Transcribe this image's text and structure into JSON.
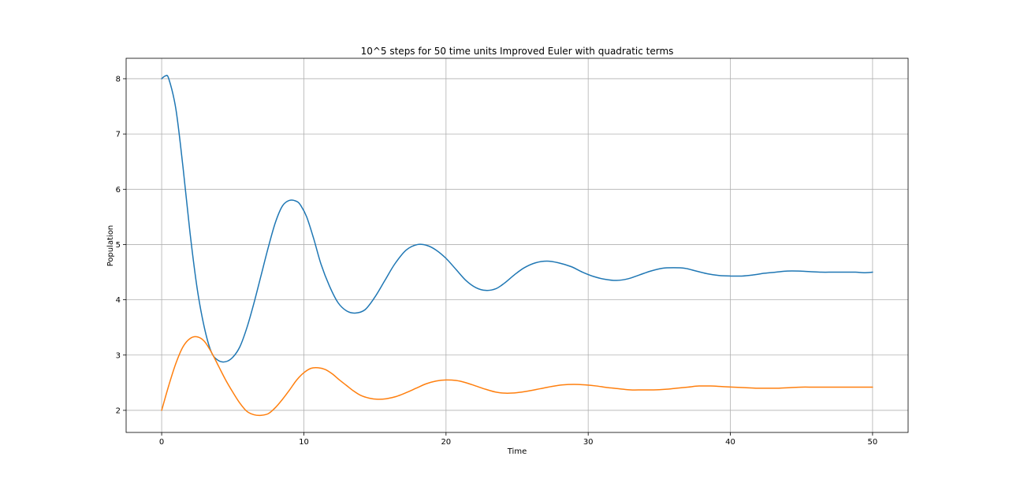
{
  "chart_data": {
    "type": "line",
    "title": "10^5 steps for 50 time units Improved Euler with quadratic terms",
    "xlabel": "Time",
    "ylabel": "Population",
    "xlim": [
      -2.5,
      52.5
    ],
    "ylim": [
      1.6,
      8.37
    ],
    "xticks": [
      0,
      10,
      20,
      30,
      40,
      50
    ],
    "yticks": [
      2,
      3,
      4,
      5,
      6,
      7,
      8
    ],
    "grid": true,
    "legend": "none",
    "series": [
      {
        "color": "#1f77b4",
        "x": [
          0,
          0.25,
          0.5,
          1.0,
          1.5,
          2.0,
          2.5,
          3.0,
          3.5,
          4.0,
          4.5,
          5.0,
          5.5,
          6.0,
          6.5,
          7.0,
          7.5,
          8.0,
          8.5,
          9.0,
          9.5,
          9.8,
          10.2,
          10.7,
          11.2,
          11.8,
          12.4,
          13.0,
          13.6,
          14.3,
          15.0,
          15.7,
          16.4,
          17.2,
          18.0,
          18.7,
          19.3,
          20.0,
          20.7,
          21.4,
          22.1,
          22.8,
          23.5,
          24.1,
          24.8,
          25.5,
          26.3,
          27.1,
          27.9,
          28.8,
          29.6,
          30.4,
          31.2,
          32.0,
          32.8,
          33.6,
          34.4,
          35.2,
          36.0,
          36.8,
          37.6,
          38.4,
          39.2,
          40.0,
          40.8,
          41.6,
          42.4,
          43.2,
          44.0,
          44.8,
          45.6,
          46.4,
          47.2,
          48.0,
          48.8,
          49.4,
          50.0
        ],
        "y": [
          8.0,
          8.05,
          8.0,
          7.45,
          6.4,
          5.2,
          4.2,
          3.5,
          3.05,
          2.9,
          2.88,
          2.96,
          3.15,
          3.5,
          3.95,
          4.45,
          4.95,
          5.4,
          5.7,
          5.8,
          5.78,
          5.7,
          5.5,
          5.1,
          4.65,
          4.25,
          3.95,
          3.8,
          3.76,
          3.82,
          4.05,
          4.35,
          4.65,
          4.9,
          5.0,
          4.98,
          4.9,
          4.75,
          4.55,
          4.35,
          4.22,
          4.17,
          4.2,
          4.3,
          4.45,
          4.58,
          4.67,
          4.7,
          4.67,
          4.6,
          4.5,
          4.42,
          4.37,
          4.35,
          4.38,
          4.45,
          4.52,
          4.57,
          4.58,
          4.57,
          4.52,
          4.47,
          4.44,
          4.43,
          4.43,
          4.45,
          4.48,
          4.5,
          4.52,
          4.52,
          4.51,
          4.5,
          4.5,
          4.5,
          4.5,
          4.49,
          4.5
        ]
      },
      {
        "color": "#ff7f0e",
        "x": [
          0,
          0.5,
          1.0,
          1.5,
          2.0,
          2.5,
          3.0,
          3.5,
          4.0,
          4.5,
          5.0,
          5.5,
          6.0,
          6.5,
          7.0,
          7.5,
          8.0,
          8.5,
          9.0,
          9.5,
          10.0,
          10.5,
          11.0,
          11.5,
          12.0,
          12.5,
          13.0,
          13.5,
          14.0,
          14.6,
          15.2,
          15.8,
          16.5,
          17.2,
          17.9,
          18.6,
          19.3,
          20.0,
          20.7,
          21.4,
          22.1,
          22.8,
          23.5,
          24.2,
          25.0,
          25.8,
          26.6,
          27.4,
          28.2,
          29.0,
          29.8,
          30.6,
          31.4,
          32.2,
          33.0,
          33.8,
          34.6,
          35.4,
          36.2,
          37.0,
          37.8,
          38.6,
          39.4,
          40.2,
          41.0,
          41.8,
          42.6,
          43.4,
          44.2,
          45.0,
          45.8,
          46.6,
          47.4,
          48.2,
          49.0,
          50.0
        ],
        "y": [
          2.0,
          2.45,
          2.85,
          3.15,
          3.3,
          3.33,
          3.25,
          3.05,
          2.8,
          2.55,
          2.33,
          2.13,
          1.98,
          1.92,
          1.91,
          1.94,
          2.05,
          2.2,
          2.37,
          2.55,
          2.68,
          2.76,
          2.77,
          2.74,
          2.66,
          2.55,
          2.45,
          2.35,
          2.27,
          2.22,
          2.2,
          2.21,
          2.25,
          2.32,
          2.4,
          2.48,
          2.53,
          2.55,
          2.54,
          2.5,
          2.44,
          2.38,
          2.33,
          2.31,
          2.32,
          2.35,
          2.39,
          2.43,
          2.46,
          2.47,
          2.46,
          2.44,
          2.41,
          2.39,
          2.37,
          2.37,
          2.37,
          2.38,
          2.4,
          2.42,
          2.44,
          2.44,
          2.43,
          2.42,
          2.41,
          2.4,
          2.4,
          2.4,
          2.41,
          2.42,
          2.42,
          2.42,
          2.42,
          2.42,
          2.42,
          2.42
        ]
      }
    ]
  }
}
